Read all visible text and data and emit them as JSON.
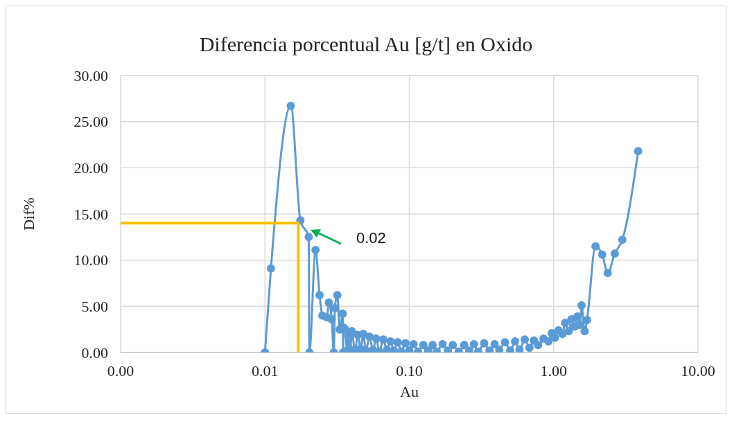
{
  "chart_data": {
    "type": "line",
    "title": "Diferencia porcentual Au [g/t] en Oxido",
    "xlabel": "Au",
    "ylabel": "Dif%",
    "log": "x",
    "grid": true,
    "legend": false,
    "xlim": [
      0.001,
      10
    ],
    "xticks": [
      {
        "value": 0.001,
        "label": "0.00"
      },
      {
        "value": 0.01,
        "label": "0.01"
      },
      {
        "value": 0.1,
        "label": "0.10"
      },
      {
        "value": 1,
        "label": "1.00"
      },
      {
        "value": 10,
        "label": "10.00"
      }
    ],
    "ylim": [
      0,
      30
    ],
    "yticks": [
      {
        "value": 0,
        "label": "0.00"
      },
      {
        "value": 5,
        "label": "5.00"
      },
      {
        "value": 10,
        "label": "10.00"
      },
      {
        "value": 15,
        "label": "15.00"
      },
      {
        "value": 20,
        "label": "20.00"
      },
      {
        "value": 25,
        "label": "25.00"
      },
      {
        "value": 30,
        "label": "30.00"
      }
    ],
    "series": [
      {
        "color": "#5b9bd5",
        "marker": "circle",
        "line_style": "solid",
        "x": [
          0.01,
          0.011,
          0.0151,
          0.0176,
          0.0201,
          0.0203,
          0.0224,
          0.0239,
          0.025,
          0.0268,
          0.0277,
          0.029,
          0.03,
          0.0305,
          0.0317,
          0.033,
          0.0346,
          0.0348,
          0.035,
          0.036,
          0.037,
          0.038,
          0.039,
          0.04,
          0.042,
          0.044,
          0.046,
          0.048,
          0.05,
          0.053,
          0.056,
          0.059,
          0.062,
          0.066,
          0.07,
          0.074,
          0.078,
          0.083,
          0.088,
          0.094,
          0.1,
          0.107,
          0.115,
          0.125,
          0.135,
          0.145,
          0.155,
          0.17,
          0.185,
          0.2,
          0.22,
          0.24,
          0.26,
          0.28,
          0.3,
          0.33,
          0.36,
          0.39,
          0.42,
          0.46,
          0.5,
          0.54,
          0.58,
          0.63,
          0.68,
          0.73,
          0.78,
          0.85,
          0.92,
          0.97,
          1.02,
          1.08,
          1.15,
          1.2,
          1.27,
          1.33,
          1.4,
          1.46,
          1.52,
          1.56,
          1.64,
          1.7,
          1.95,
          2.17,
          2.37,
          2.65,
          2.99,
          3.85
        ],
        "values": [
          0,
          9.1,
          26.7,
          14.3,
          12.5,
          0,
          11.1,
          6.2,
          4.0,
          3.8,
          5.4,
          3.6,
          0,
          4.8,
          6.2,
          2.5,
          4.2,
          0,
          2.7,
          2.5,
          0.2,
          1.8,
          0.3,
          2.3,
          0.1,
          1.9,
          0.4,
          2.0,
          0.2,
          1.7,
          0.3,
          1.5,
          0.1,
          1.4,
          0.3,
          1.2,
          0.2,
          1.1,
          0.1,
          1.0,
          0.2,
          0.9,
          0.1,
          0.8,
          0.2,
          0.8,
          0.1,
          0.9,
          0.2,
          0.8,
          0.1,
          0.8,
          0.2,
          0.9,
          0.1,
          1.0,
          0.2,
          0.9,
          0.3,
          1.1,
          0.2,
          1.2,
          0.3,
          1.4,
          0.5,
          1.3,
          0.8,
          1.5,
          1.2,
          2.1,
          1.6,
          2.4,
          2.0,
          3.2,
          2.3,
          3.6,
          2.8,
          3.9,
          3.0,
          5.1,
          2.3,
          3.5,
          11.5,
          10.6,
          8.6,
          10.7,
          12.2,
          21.8
        ]
      },
      {
        "color": "#ffc000",
        "marker": "none",
        "line_style": "solid",
        "x": [
          0.001,
          0.017,
          0.017
        ],
        "values": [
          14,
          14,
          0
        ]
      }
    ],
    "annotations": [
      "0.02"
    ]
  }
}
